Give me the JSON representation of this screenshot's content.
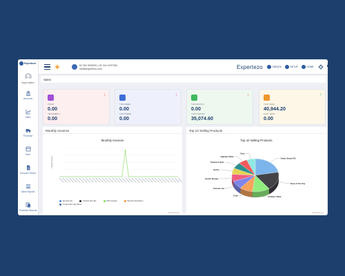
{
  "app": {
    "logo_text": "Expertezo",
    "brand": "Expertezo"
  },
  "user": {
    "role": "Super Admin"
  },
  "sidebar": {
    "items": [
      {
        "label": "Accounts",
        "icon": "bank-icon"
      },
      {
        "label": "Sales",
        "icon": "chart-icon"
      },
      {
        "label": "Purchase",
        "icon": "truck-icon"
      },
      {
        "label": "Store",
        "icon": "store-icon"
      },
      {
        "label": "Accounts Report",
        "icon": "report-icon"
      },
      {
        "label": "Sales Reports",
        "icon": "list-icon"
      },
      {
        "label": "Purchase Reports",
        "icon": "copy-icon"
      }
    ]
  },
  "topbar": {
    "phone_line": "92 302 9000901 | 92 344 2297383",
    "email_line": "info@expertezo.com",
    "create_label": "CREATE",
    "setup_label": "SETUP",
    "home_label": "HOME"
  },
  "page": {
    "title": "Sales"
  },
  "cards": [
    {
      "id": "today",
      "label1": "TODAY",
      "value1": "0.00",
      "label2": "YESTERDAY",
      "value2": "0.00",
      "bg": "#fdeef0",
      "icon_color": "#a24fd6",
      "trend": "↓",
      "trend_color": "#e04848"
    },
    {
      "id": "week",
      "label1": "THIS WEEK",
      "value1": "0.00",
      "label2": "LAST WEEK",
      "value2": "0.00",
      "bg": "#eef0fb",
      "icon_color": "#3f6ed8",
      "trend": "↓",
      "trend_color": "#e04848"
    },
    {
      "id": "month",
      "label1": "THIS MONTH",
      "value1": "0.00",
      "label2": "LAST MONTH",
      "value2": "35,074.60",
      "bg": "#eef8ef",
      "icon_color": "#3fba5f",
      "trend": "↓",
      "trend_color": "#e04848"
    },
    {
      "id": "year",
      "label1": "THIS YEAR",
      "value1": "40,944.20",
      "label2": "LAST YEAR",
      "value2": "0.00",
      "bg": "#fdf7e8",
      "icon_color": "#f0962c",
      "trend": "↑",
      "trend_color": "#2aa84a"
    }
  ],
  "monthly_panel": {
    "heading": "Monthly Invoices",
    "chart_title": "Monthly Invoices",
    "ylabel": "Invoice Count",
    "legend": [
      {
        "name": "Services Tax",
        "color": "#4f8ef0"
      },
      {
        "name": "Invoices Non-Tax",
        "color": "#2b2b2b"
      },
      {
        "name": "POS Invoices",
        "color": "#7ed957"
      },
      {
        "name": "Services Tax Return",
        "color": "#f0962c"
      },
      {
        "name": "Invoices Non-Tax Return",
        "color": "#4a6da3"
      }
    ],
    "credit": "Highcharts.com"
  },
  "products_panel": {
    "heading": "Top 10 Selling Products",
    "chart_title": "Top 10 Selling Products",
    "credit": "Highcharts.com"
  },
  "chart_data": [
    {
      "type": "line",
      "title": "Monthly Invoices",
      "ylabel": "Invoice Count",
      "series": [
        {
          "name": "Services Tax",
          "values": []
        },
        {
          "name": "Invoices Non-Tax",
          "values": []
        },
        {
          "name": "POS Invoices",
          "values": [
            0,
            0,
            0,
            0,
            0,
            0,
            0,
            0,
            0,
            0,
            0,
            0,
            0,
            0,
            0,
            0,
            0,
            0,
            0,
            0,
            1,
            0,
            0,
            0,
            0,
            0,
            0,
            0,
            0,
            0,
            0,
            0,
            0,
            0,
            0,
            0,
            0
          ]
        },
        {
          "name": "Services Tax Return",
          "values": []
        },
        {
          "name": "Invoices Non-Tax Return",
          "values": []
        }
      ]
    },
    {
      "type": "pie",
      "title": "Top 10 Selling Products",
      "categories": [
        "Garlic Bread 5/5",
        "Soup of the day",
        "Chicken Tikka",
        "Coke",
        "Caesars tea",
        "Jumbo Burger",
        "Sprite",
        "Supreme Spcl.",
        "Afghani Tikka",
        "Oreo"
      ],
      "values": [
        22,
        18,
        12,
        9,
        8,
        7,
        6,
        6,
        6,
        6
      ],
      "colors": [
        "#7cb5ec",
        "#434348",
        "#90ed7d",
        "#f7a35c",
        "#8085e9",
        "#f15c80",
        "#e4d354",
        "#2b908f",
        "#f45b5b",
        "#91e8e1"
      ]
    }
  ]
}
